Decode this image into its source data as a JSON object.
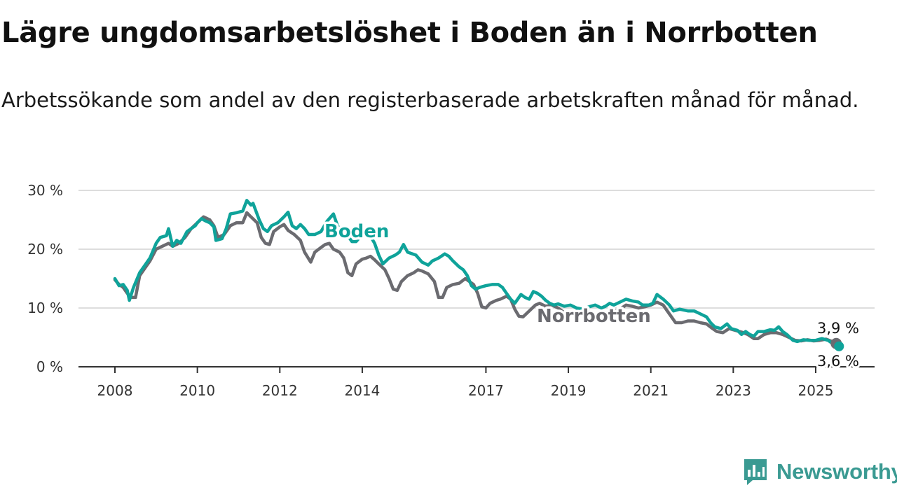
{
  "title": "Lägre ungdomsarbetslöshet i Boden än i Norrbotten",
  "subtitle": "Arbetssökande som andel av den registerbaserade arbetskraften månad för månad.",
  "brand": "Newsworthy",
  "colors": {
    "boden": "#0fa39a",
    "norrbotten": "#6b6b70",
    "grid": "#dddddd",
    "axis": "#333333",
    "brand": "#3a9a92"
  },
  "chart_data": {
    "type": "line",
    "title": "Lägre ungdomsarbetslöshet i Boden än i Norrbotten",
    "xlabel": "",
    "ylabel": "",
    "xlim": [
      2007.9,
      2025.75
    ],
    "ylim": [
      0,
      30
    ],
    "y_ticks": [
      0,
      10,
      20,
      30
    ],
    "y_tick_labels": [
      "0 %",
      "10 %",
      "20 %",
      "30 %"
    ],
    "x_ticks": [
      2008,
      2010,
      2012,
      2014,
      2017,
      2019,
      2021,
      2023,
      2025
    ],
    "x_tick_labels": [
      "2008",
      "2010",
      "2012",
      "2014",
      "2017",
      "2019",
      "2021",
      "2023",
      "2025"
    ],
    "grid": true,
    "series": [
      {
        "name": "Boden",
        "end_label": "3,6 %",
        "points": [
          [
            2008.0,
            15.0
          ],
          [
            2008.1,
            13.8
          ],
          [
            2008.2,
            14.0
          ],
          [
            2008.3,
            13.0
          ],
          [
            2008.35,
            11.3
          ],
          [
            2008.45,
            13.5
          ],
          [
            2008.6,
            16.0
          ],
          [
            2008.75,
            17.5
          ],
          [
            2008.85,
            18.5
          ],
          [
            2009.0,
            21.0
          ],
          [
            2009.1,
            22.0
          ],
          [
            2009.25,
            22.3
          ],
          [
            2009.3,
            23.5
          ],
          [
            2009.4,
            20.5
          ],
          [
            2009.5,
            21.5
          ],
          [
            2009.6,
            21.0
          ],
          [
            2009.75,
            23.0
          ],
          [
            2009.85,
            23.5
          ],
          [
            2009.95,
            24.0
          ],
          [
            2010.0,
            24.5
          ],
          [
            2010.1,
            25.2
          ],
          [
            2010.2,
            24.8
          ],
          [
            2010.3,
            24.5
          ],
          [
            2010.4,
            23.8
          ],
          [
            2010.45,
            21.5
          ],
          [
            2010.6,
            21.8
          ],
          [
            2010.7,
            23.5
          ],
          [
            2010.8,
            26.0
          ],
          [
            2010.95,
            26.2
          ],
          [
            2011.1,
            26.5
          ],
          [
            2011.2,
            28.3
          ],
          [
            2011.3,
            27.5
          ],
          [
            2011.35,
            27.8
          ],
          [
            2011.5,
            25.0
          ],
          [
            2011.6,
            23.5
          ],
          [
            2011.7,
            23.0
          ],
          [
            2011.8,
            24.0
          ],
          [
            2011.95,
            24.5
          ],
          [
            2012.1,
            25.5
          ],
          [
            2012.2,
            26.3
          ],
          [
            2012.3,
            24.0
          ],
          [
            2012.4,
            23.5
          ],
          [
            2012.5,
            24.2
          ],
          [
            2012.6,
            23.5
          ],
          [
            2012.7,
            22.5
          ],
          [
            2012.85,
            22.5
          ],
          [
            2013.0,
            23.0
          ],
          [
            2013.15,
            24.8
          ],
          [
            2013.3,
            26.0
          ],
          [
            2013.4,
            24.0
          ],
          [
            2013.5,
            23.0
          ],
          [
            2013.65,
            22.3
          ],
          [
            2013.75,
            21.3
          ],
          [
            2013.85,
            21.3
          ],
          [
            2014.0,
            22.5
          ],
          [
            2014.15,
            22.8
          ],
          [
            2014.3,
            21.0
          ],
          [
            2014.4,
            19.0
          ],
          [
            2014.5,
            17.5
          ],
          [
            2014.65,
            18.5
          ],
          [
            2014.8,
            19.0
          ],
          [
            2014.9,
            19.5
          ],
          [
            2015.0,
            20.8
          ],
          [
            2015.1,
            19.5
          ],
          [
            2015.3,
            19.0
          ],
          [
            2015.45,
            17.8
          ],
          [
            2015.6,
            17.3
          ],
          [
            2015.7,
            18.0
          ],
          [
            2015.85,
            18.5
          ],
          [
            2016.0,
            19.2
          ],
          [
            2016.1,
            18.8
          ],
          [
            2016.2,
            18.0
          ],
          [
            2016.35,
            17.0
          ],
          [
            2016.45,
            16.5
          ],
          [
            2016.55,
            15.5
          ],
          [
            2016.65,
            13.8
          ],
          [
            2016.75,
            13.2
          ],
          [
            2016.85,
            13.5
          ],
          [
            2017.0,
            13.8
          ],
          [
            2017.15,
            14.0
          ],
          [
            2017.3,
            14.0
          ],
          [
            2017.4,
            13.5
          ],
          [
            2017.5,
            12.5
          ],
          [
            2017.6,
            11.5
          ],
          [
            2017.7,
            10.8
          ],
          [
            2017.85,
            12.3
          ],
          [
            2017.95,
            11.8
          ],
          [
            2018.05,
            11.5
          ],
          [
            2018.15,
            12.8
          ],
          [
            2018.25,
            12.5
          ],
          [
            2018.35,
            12.0
          ],
          [
            2018.45,
            11.3
          ],
          [
            2018.55,
            10.8
          ],
          [
            2018.65,
            10.5
          ],
          [
            2018.75,
            10.7
          ],
          [
            2018.9,
            10.3
          ],
          [
            2019.05,
            10.5
          ],
          [
            2019.2,
            10.0
          ],
          [
            2019.35,
            9.8
          ],
          [
            2019.5,
            10.2
          ],
          [
            2019.65,
            10.5
          ],
          [
            2019.8,
            10.0
          ],
          [
            2019.9,
            10.3
          ],
          [
            2020.0,
            10.8
          ],
          [
            2020.1,
            10.5
          ],
          [
            2020.25,
            11.0
          ],
          [
            2020.4,
            11.5
          ],
          [
            2020.55,
            11.2
          ],
          [
            2020.7,
            11.0
          ],
          [
            2020.8,
            10.5
          ],
          [
            2020.95,
            10.5
          ],
          [
            2021.05,
            10.8
          ],
          [
            2021.15,
            12.3
          ],
          [
            2021.3,
            11.5
          ],
          [
            2021.45,
            10.5
          ],
          [
            2021.55,
            9.5
          ],
          [
            2021.7,
            9.8
          ],
          [
            2021.9,
            9.5
          ],
          [
            2022.05,
            9.5
          ],
          [
            2022.2,
            9.0
          ],
          [
            2022.35,
            8.5
          ],
          [
            2022.45,
            7.5
          ],
          [
            2022.55,
            6.8
          ],
          [
            2022.7,
            6.5
          ],
          [
            2022.85,
            7.3
          ],
          [
            2022.95,
            6.5
          ],
          [
            2023.1,
            6.2
          ],
          [
            2023.2,
            5.5
          ],
          [
            2023.3,
            6.0
          ],
          [
            2023.4,
            5.5
          ],
          [
            2023.5,
            5.2
          ],
          [
            2023.6,
            6.0
          ],
          [
            2023.75,
            6.0
          ],
          [
            2023.9,
            6.3
          ],
          [
            2024.0,
            6.2
          ],
          [
            2024.1,
            6.8
          ],
          [
            2024.2,
            6.0
          ],
          [
            2024.3,
            5.5
          ],
          [
            2024.45,
            4.5
          ],
          [
            2024.55,
            4.3
          ],
          [
            2024.7,
            4.6
          ],
          [
            2024.85,
            4.5
          ],
          [
            2025.0,
            4.5
          ],
          [
            2025.15,
            4.8
          ],
          [
            2025.3,
            4.5
          ],
          [
            2025.4,
            4.0
          ],
          [
            2025.5,
            3.6
          ],
          [
            2025.55,
            3.9
          ],
          [
            2025.6,
            3.6
          ]
        ]
      },
      {
        "name": "Norrbotten",
        "end_label": "3,9 %",
        "points": [
          [
            2008.0,
            14.8
          ],
          [
            2008.1,
            14.0
          ],
          [
            2008.2,
            13.5
          ],
          [
            2008.3,
            12.5
          ],
          [
            2008.4,
            11.8
          ],
          [
            2008.5,
            11.8
          ],
          [
            2008.6,
            15.5
          ],
          [
            2008.75,
            17.0
          ],
          [
            2008.85,
            18.0
          ],
          [
            2009.0,
            20.0
          ],
          [
            2009.15,
            20.5
          ],
          [
            2009.3,
            21.0
          ],
          [
            2009.4,
            20.5
          ],
          [
            2009.55,
            21.0
          ],
          [
            2009.7,
            22.0
          ],
          [
            2009.85,
            23.5
          ],
          [
            2010.0,
            24.5
          ],
          [
            2010.15,
            25.5
          ],
          [
            2010.3,
            25.0
          ],
          [
            2010.4,
            24.0
          ],
          [
            2010.5,
            22.0
          ],
          [
            2010.65,
            22.5
          ],
          [
            2010.8,
            24.0
          ],
          [
            2010.95,
            24.5
          ],
          [
            2011.1,
            24.5
          ],
          [
            2011.2,
            26.2
          ],
          [
            2011.3,
            25.5
          ],
          [
            2011.45,
            24.5
          ],
          [
            2011.55,
            22.0
          ],
          [
            2011.65,
            21.0
          ],
          [
            2011.75,
            20.8
          ],
          [
            2011.85,
            23.0
          ],
          [
            2012.0,
            23.8
          ],
          [
            2012.1,
            24.2
          ],
          [
            2012.2,
            23.2
          ],
          [
            2012.35,
            22.5
          ],
          [
            2012.5,
            21.5
          ],
          [
            2012.6,
            19.5
          ],
          [
            2012.75,
            17.8
          ],
          [
            2012.85,
            19.5
          ],
          [
            2013.0,
            20.3
          ],
          [
            2013.1,
            20.8
          ],
          [
            2013.2,
            21.0
          ],
          [
            2013.3,
            20.0
          ],
          [
            2013.45,
            19.5
          ],
          [
            2013.55,
            18.5
          ],
          [
            2013.65,
            16.0
          ],
          [
            2013.75,
            15.5
          ],
          [
            2013.85,
            17.5
          ],
          [
            2014.0,
            18.3
          ],
          [
            2014.1,
            18.5
          ],
          [
            2014.2,
            18.8
          ],
          [
            2014.3,
            18.2
          ],
          [
            2014.4,
            17.5
          ],
          [
            2014.55,
            16.5
          ],
          [
            2014.65,
            15.0
          ],
          [
            2014.75,
            13.2
          ],
          [
            2014.85,
            13.0
          ],
          [
            2014.95,
            14.5
          ],
          [
            2015.1,
            15.5
          ],
          [
            2015.25,
            16.0
          ],
          [
            2015.35,
            16.5
          ],
          [
            2015.45,
            16.3
          ],
          [
            2015.6,
            15.8
          ],
          [
            2015.75,
            14.5
          ],
          [
            2015.85,
            11.8
          ],
          [
            2015.95,
            11.8
          ],
          [
            2016.05,
            13.5
          ],
          [
            2016.2,
            14.0
          ],
          [
            2016.35,
            14.2
          ],
          [
            2016.5,
            15.0
          ],
          [
            2016.6,
            14.5
          ],
          [
            2016.7,
            14.0
          ],
          [
            2016.8,
            12.5
          ],
          [
            2016.9,
            10.2
          ],
          [
            2017.0,
            10.0
          ],
          [
            2017.1,
            10.8
          ],
          [
            2017.25,
            11.3
          ],
          [
            2017.35,
            11.5
          ],
          [
            2017.5,
            12.0
          ],
          [
            2017.6,
            11.5
          ],
          [
            2017.7,
            9.8
          ],
          [
            2017.8,
            8.6
          ],
          [
            2017.9,
            8.5
          ],
          [
            2018.05,
            9.5
          ],
          [
            2018.2,
            10.5
          ],
          [
            2018.3,
            10.8
          ],
          [
            2018.45,
            10.3
          ],
          [
            2018.6,
            10.5
          ],
          [
            2018.75,
            10.0
          ],
          [
            2018.9,
            9.2
          ],
          [
            2019.05,
            9.0
          ],
          [
            2019.2,
            9.5
          ],
          [
            2019.35,
            9.8
          ],
          [
            2019.5,
            9.5
          ],
          [
            2019.65,
            9.0
          ],
          [
            2019.8,
            8.8
          ],
          [
            2019.95,
            9.0
          ],
          [
            2020.1,
            9.5
          ],
          [
            2020.25,
            9.8
          ],
          [
            2020.4,
            10.5
          ],
          [
            2020.55,
            10.3
          ],
          [
            2020.7,
            10.0
          ],
          [
            2020.85,
            10.2
          ],
          [
            2021.0,
            10.5
          ],
          [
            2021.15,
            11.0
          ],
          [
            2021.3,
            10.5
          ],
          [
            2021.4,
            9.5
          ],
          [
            2021.5,
            8.5
          ],
          [
            2021.6,
            7.5
          ],
          [
            2021.75,
            7.5
          ],
          [
            2021.9,
            7.8
          ],
          [
            2022.05,
            7.8
          ],
          [
            2022.2,
            7.5
          ],
          [
            2022.35,
            7.3
          ],
          [
            2022.5,
            6.5
          ],
          [
            2022.6,
            6.0
          ],
          [
            2022.75,
            5.8
          ],
          [
            2022.9,
            6.5
          ],
          [
            2023.05,
            6.2
          ],
          [
            2023.2,
            5.9
          ],
          [
            2023.35,
            5.5
          ],
          [
            2023.5,
            4.8
          ],
          [
            2023.6,
            4.8
          ],
          [
            2023.75,
            5.5
          ],
          [
            2023.9,
            5.8
          ],
          [
            2024.05,
            5.8
          ],
          [
            2024.2,
            5.5
          ],
          [
            2024.35,
            5.0
          ],
          [
            2024.5,
            4.5
          ],
          [
            2024.65,
            4.4
          ],
          [
            2024.8,
            4.6
          ],
          [
            2024.95,
            4.4
          ],
          [
            2025.1,
            4.5
          ],
          [
            2025.25,
            4.7
          ],
          [
            2025.4,
            4.3
          ],
          [
            2025.5,
            4.0
          ],
          [
            2025.6,
            3.9
          ]
        ]
      }
    ]
  }
}
